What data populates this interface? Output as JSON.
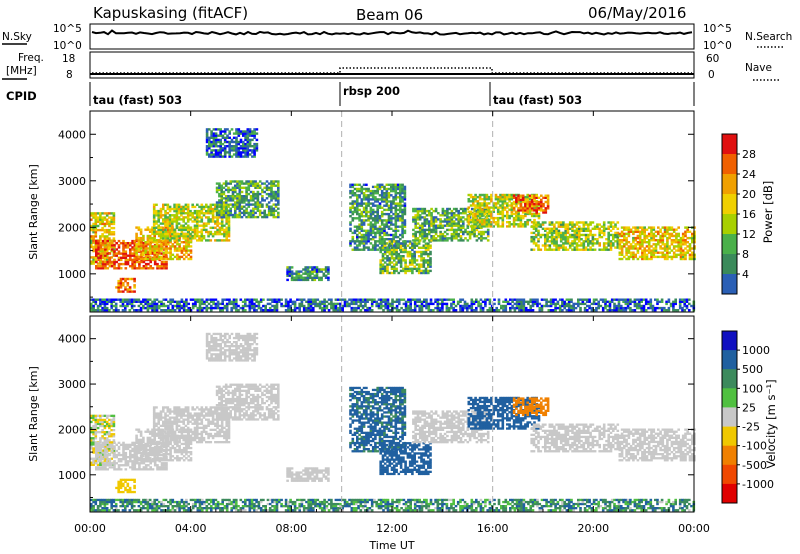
{
  "header": {
    "station": "Kapuskasing (fitACF)",
    "beam": "Beam 06",
    "date": "06/May/2016"
  },
  "nsky_panel": {
    "left_label": "N.Sky",
    "left_ticks": [
      "10^5",
      "10^0"
    ],
    "right_label": "N.Search",
    "right_ticks": [
      "10^5",
      "10^0"
    ]
  },
  "freq_panel": {
    "left_label_line1": "Freq.",
    "left_label_line2": "[MHz]",
    "left_ticks": [
      "18",
      "8"
    ],
    "right_label": "Nave",
    "right_ticks": [
      "60",
      "0"
    ]
  },
  "cpid": {
    "label": "CPID",
    "segments": [
      {
        "name": "tau (fast) 503",
        "start_hour": 0,
        "end_hour": 10
      },
      {
        "name": "rbsp 200",
        "start_hour": 10,
        "end_hour": 16
      },
      {
        "name": "tau (fast) 503",
        "start_hour": 16,
        "end_hour": 24
      }
    ]
  },
  "x_axis": {
    "label": "Time UT",
    "tick_labels": [
      "00:00",
      "04:00",
      "08:00",
      "12:00",
      "16:00",
      "20:00",
      "00:00"
    ],
    "range_hours": [
      0,
      24
    ]
  },
  "power_panel": {
    "ylabel": "Slant Range [km]",
    "y_tick_labels": [
      "1000",
      "2000",
      "3000",
      "4000"
    ],
    "colorbar_label": "Power [dB]",
    "colorbar_ticks": [
      "4",
      "8",
      "12",
      "16",
      "20",
      "24",
      "28"
    ],
    "colors": [
      "#0000ff",
      "#2a5fb5",
      "#3a8a5a",
      "#4ab04a",
      "#a8d000",
      "#f0d000",
      "#f0a000",
      "#f06000",
      "#e01010"
    ]
  },
  "velocity_panel": {
    "ylabel": "Slant Range [km]",
    "y_tick_labels": [
      "1000",
      "2000",
      "3000",
      "4000"
    ],
    "colorbar_label": "Velocity [m s⁻¹]",
    "colorbar_ticks": [
      "1000",
      "500",
      "100",
      "25",
      "-25",
      "-100",
      "-500",
      "-1000"
    ],
    "colors": [
      "#1010c0",
      "#2060a0",
      "#3c8a5c",
      "#50c040",
      "#c8c8c8",
      "#f0c800",
      "#f08000",
      "#f04800",
      "#e00000"
    ],
    "ground_scatter_color": "#c8c8c8"
  },
  "chart_data": {
    "type": "heatmap",
    "x_range_hours": [
      0,
      24
    ],
    "range_km": [
      180,
      4500
    ],
    "power_db_range": [
      0,
      30
    ],
    "velocity_range": [
      -1000,
      1000
    ],
    "scatter_bands": [
      {
        "t0": 0.0,
        "t1": 0.9,
        "r0": 1200,
        "r1": 2300,
        "power_db": 18,
        "velocity": -80,
        "ground": false
      },
      {
        "t0": 0.2,
        "t1": 3.0,
        "r0": 1100,
        "r1": 1700,
        "power_db": 26,
        "velocity": 0,
        "ground": true
      },
      {
        "t0": 1.0,
        "t1": 1.8,
        "r0": 600,
        "r1": 900,
        "power_db": 24,
        "velocity": -400,
        "ground": false
      },
      {
        "t0": 1.8,
        "t1": 4.0,
        "r0": 1300,
        "r1": 2000,
        "power_db": 20,
        "velocity": 0,
        "ground": true
      },
      {
        "t0": 2.5,
        "t1": 5.5,
        "r0": 1700,
        "r1": 2500,
        "power_db": 16,
        "velocity": 0,
        "ground": true
      },
      {
        "t0": 5.0,
        "t1": 7.5,
        "r0": 2200,
        "r1": 3000,
        "power_db": 10,
        "velocity": 0,
        "ground": true
      },
      {
        "t0": 4.6,
        "t1": 6.6,
        "r0": 3500,
        "r1": 4100,
        "power_db": 6,
        "velocity": 0,
        "ground": true
      },
      {
        "t0": 7.8,
        "t1": 9.5,
        "r0": 850,
        "r1": 1150,
        "power_db": 8,
        "velocity": 0,
        "ground": true
      },
      {
        "t0": 10.3,
        "t1": 12.5,
        "r0": 1500,
        "r1": 2900,
        "power_db": 9,
        "velocity": 150,
        "ground": false
      },
      {
        "t0": 11.5,
        "t1": 13.5,
        "r0": 1000,
        "r1": 1700,
        "power_db": 12,
        "velocity": 200,
        "ground": false
      },
      {
        "t0": 12.8,
        "t1": 15.8,
        "r0": 1700,
        "r1": 2400,
        "power_db": 11,
        "velocity": 0,
        "ground": true
      },
      {
        "t0": 15.0,
        "t1": 17.8,
        "r0": 2000,
        "r1": 2700,
        "power_db": 16,
        "velocity": 300,
        "ground": false
      },
      {
        "t0": 16.8,
        "t1": 18.2,
        "r0": 2300,
        "r1": 2700,
        "power_db": 24,
        "velocity": -600,
        "ground": false
      },
      {
        "t0": 17.5,
        "t1": 21.0,
        "r0": 1500,
        "r1": 2100,
        "power_db": 15,
        "velocity": 0,
        "ground": true
      },
      {
        "t0": 21.0,
        "t1": 24.0,
        "r0": 1300,
        "r1": 2000,
        "power_db": 19,
        "velocity": 0,
        "ground": true
      },
      {
        "t0": 0.0,
        "t1": 24.0,
        "r0": 200,
        "r1": 450,
        "power_db": 6,
        "velocity": 60,
        "ground": false
      }
    ]
  }
}
